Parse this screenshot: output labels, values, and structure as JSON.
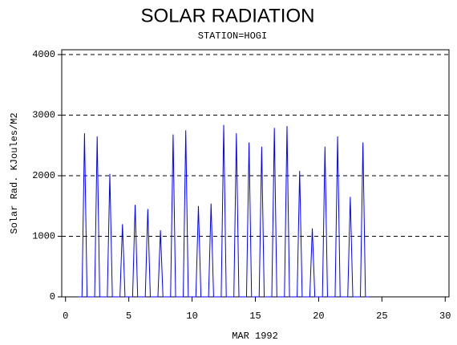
{
  "chart_data": {
    "type": "line",
    "title": "SOLAR RADIATION",
    "subtitle": "STATION=HOGI",
    "ylabel": "Solar Rad. KJoules/M2",
    "xlabel": "MAR 1992",
    "color": "#0000ff",
    "x": [
      1,
      1.3,
      1.5,
      1.7,
      2.3,
      2.5,
      2.7,
      3.3,
      3.5,
      3.7,
      4.3,
      4.5,
      4.7,
      5.3,
      5.5,
      5.7,
      6.3,
      6.5,
      6.7,
      7.3,
      7.5,
      7.7,
      8.3,
      8.5,
      8.7,
      9.3,
      9.5,
      9.7,
      10.3,
      10.5,
      10.7,
      11.3,
      11.5,
      11.7,
      12.3,
      12.5,
      12.7,
      13.3,
      13.5,
      13.7,
      14.3,
      14.5,
      14.7,
      15.3,
      15.5,
      15.7,
      16.3,
      16.5,
      16.7,
      17.3,
      17.5,
      17.7,
      18.3,
      18.5,
      18.7,
      19.3,
      19.5,
      19.7,
      20.3,
      20.5,
      20.7,
      21.3,
      21.5,
      21.7,
      22.3,
      22.5,
      22.7,
      23.3,
      23.5,
      23.7,
      24
    ],
    "values": [
      0,
      0,
      2700,
      0,
      0,
      2650,
      0,
      0,
      2030,
      0,
      0,
      1200,
      0,
      0,
      1520,
      0,
      0,
      1450,
      0,
      0,
      1100,
      0,
      0,
      2680,
      0,
      0,
      2750,
      0,
      0,
      1500,
      0,
      0,
      1540,
      0,
      0,
      2840,
      0,
      0,
      2700,
      0,
      0,
      2550,
      0,
      0,
      2480,
      0,
      0,
      2790,
      0,
      0,
      2820,
      0,
      0,
      2080,
      0,
      0,
      1130,
      0,
      0,
      2480,
      0,
      0,
      2650,
      0,
      0,
      1650,
      0,
      0,
      2550,
      0,
      0
    ],
    "xlim": [
      -0.3,
      30.3
    ],
    "xticks": [
      0,
      5,
      10,
      15,
      20,
      25,
      30
    ],
    "ylim": [
      0,
      4080
    ],
    "yticks": [
      0,
      1000,
      2000,
      3000,
      4000
    ],
    "grid": true
  }
}
